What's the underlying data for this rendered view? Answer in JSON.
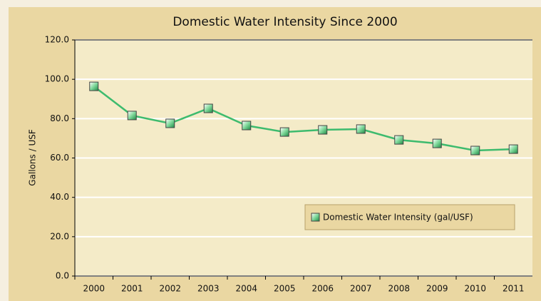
{
  "chart_data": {
    "type": "line",
    "title": "Domestic Water Intensity Since 2000",
    "y_label": "Gallons / USF",
    "categories": [
      "2000",
      "2001",
      "2002",
      "2003",
      "2004",
      "2005",
      "2006",
      "2007",
      "2008",
      "2009",
      "2010",
      "2011"
    ],
    "series": [
      {
        "name": "Domestic Water Intensity (gal/USF)",
        "color": "#3dbb6e",
        "values": [
          96.4,
          81.6,
          77.6,
          85.2,
          76.5,
          73.2,
          74.3,
          74.7,
          69.2,
          67.4,
          63.8,
          64.5
        ]
      }
    ],
    "ylim": [
      0,
      120
    ],
    "yticks": [
      {
        "value": 0,
        "label": "0.0"
      },
      {
        "value": 20,
        "label": "20.0"
      },
      {
        "value": 40,
        "label": "40.0"
      },
      {
        "value": 60,
        "label": "60.0"
      },
      {
        "value": 80,
        "label": "80.0"
      },
      {
        "value": 100,
        "label": "100.0"
      },
      {
        "value": 120,
        "label": "120.0"
      }
    ],
    "grid": true,
    "legend": "lower right"
  }
}
